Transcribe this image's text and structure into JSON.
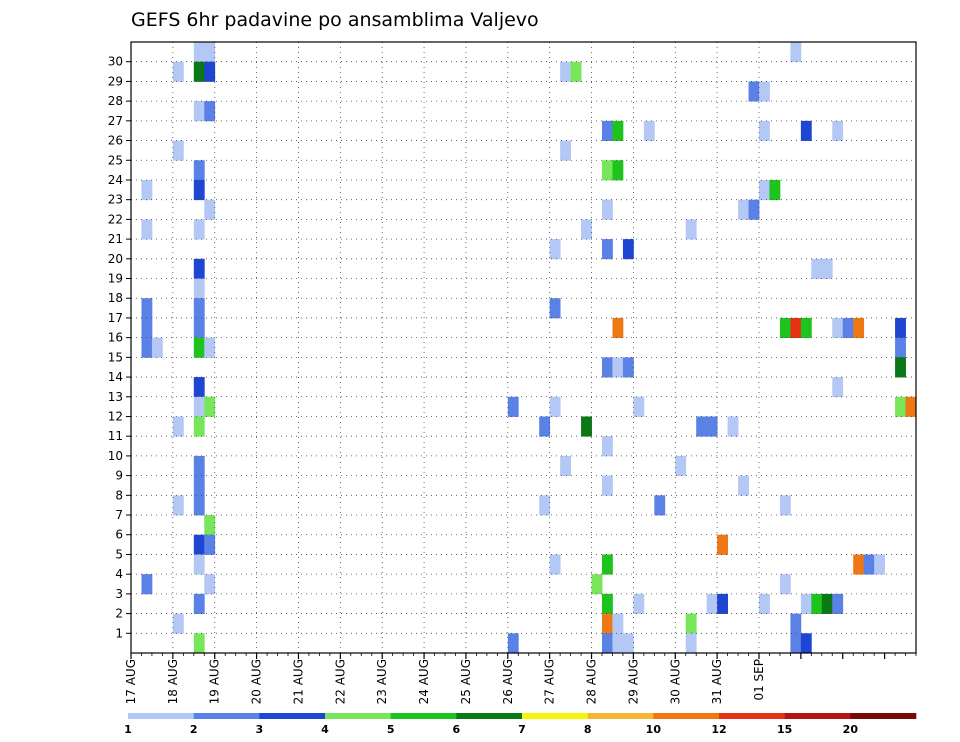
{
  "chart_data": {
    "type": "heatmap",
    "title": "GEFS 6hr padavine po ansamblima Valjevo",
    "xlabel": "",
    "ylabel": "",
    "x_tick_labels": [
      "17 AUG",
      "18 AUG",
      "19 AUG",
      "20 AUG",
      "21 AUG",
      "22 AUG",
      "23 AUG",
      "24 AUG",
      "25 AUG",
      "26 AUG",
      "27 AUG",
      "28 AUG",
      "29 AUG",
      "30 AUG",
      "31 AUG",
      "01 SEP"
    ],
    "y_tick_labels": [
      "1",
      "2",
      "3",
      "4",
      "5",
      "6",
      "7",
      "8",
      "9",
      "10",
      "11",
      "12",
      "13",
      "14",
      "15",
      "16",
      "17",
      "18",
      "19",
      "20",
      "21",
      "22",
      "23",
      "24",
      "25",
      "26",
      "27",
      "28",
      "29",
      "30"
    ],
    "x_step_hours": 6,
    "grid": true,
    "legend_position": "bottom",
    "legend": {
      "levels": [
        "1",
        "2",
        "3",
        "4",
        "5",
        "6",
        "7",
        "8",
        "10",
        "12",
        "15",
        "20"
      ],
      "colors": [
        "#b4c8f5",
        "#5a82e6",
        "#1e46d2",
        "#78e65a",
        "#1ec31e",
        "#0a7814",
        "#f5f50a",
        "#f5b432",
        "#f07814",
        "#e63214",
        "#b41414",
        "#780a0a"
      ]
    },
    "cells": [
      {
        "m": 30,
        "t": 6,
        "v": 1.5
      },
      {
        "m": 30,
        "t": 7,
        "v": 1.5
      },
      {
        "m": 30,
        "t": 63,
        "v": 1.5
      },
      {
        "m": 29,
        "t": 4,
        "v": 1.5
      },
      {
        "m": 29,
        "t": 6,
        "v": 6.5
      },
      {
        "m": 29,
        "t": 7,
        "v": 3.5
      },
      {
        "m": 29,
        "t": 41,
        "v": 1.5
      },
      {
        "m": 29,
        "t": 42,
        "v": 4.5
      },
      {
        "m": 28,
        "t": 59,
        "v": 2.5
      },
      {
        "m": 28,
        "t": 60,
        "v": 1.5
      },
      {
        "m": 27,
        "t": 6,
        "v": 1.5
      },
      {
        "m": 27,
        "t": 7,
        "v": 2.5
      },
      {
        "m": 26,
        "t": 45,
        "v": 2.5
      },
      {
        "m": 26,
        "t": 46,
        "v": 5.5
      },
      {
        "m": 26,
        "t": 49,
        "v": 1.5
      },
      {
        "m": 26,
        "t": 60,
        "v": 1.5
      },
      {
        "m": 26,
        "t": 64,
        "v": 3.5
      },
      {
        "m": 26,
        "t": 67,
        "v": 1.5
      },
      {
        "m": 25,
        "t": 4,
        "v": 1.5
      },
      {
        "m": 25,
        "t": 41,
        "v": 1.5
      },
      {
        "m": 24,
        "t": 6,
        "v": 2.5
      },
      {
        "m": 24,
        "t": 45,
        "v": 4.5
      },
      {
        "m": 24,
        "t": 46,
        "v": 5.5
      },
      {
        "m": 23,
        "t": 1,
        "v": 1.5
      },
      {
        "m": 23,
        "t": 6,
        "v": 3.5
      },
      {
        "m": 23,
        "t": 60,
        "v": 1.5
      },
      {
        "m": 23,
        "t": 61,
        "v": 5.5
      },
      {
        "m": 22,
        "t": 7,
        "v": 1.5
      },
      {
        "m": 22,
        "t": 45,
        "v": 1.5
      },
      {
        "m": 22,
        "t": 58,
        "v": 1.5
      },
      {
        "m": 22,
        "t": 59,
        "v": 2.5
      },
      {
        "m": 21,
        "t": 1,
        "v": 1.5
      },
      {
        "m": 21,
        "t": 6,
        "v": 1.5
      },
      {
        "m": 21,
        "t": 43,
        "v": 1.5
      },
      {
        "m": 21,
        "t": 53,
        "v": 1.5
      },
      {
        "m": 20,
        "t": 40,
        "v": 1.5
      },
      {
        "m": 20,
        "t": 45,
        "v": 2.5
      },
      {
        "m": 20,
        "t": 47,
        "v": 3.5
      },
      {
        "m": 19,
        "t": 6,
        "v": 3.5
      },
      {
        "m": 19,
        "t": 65,
        "v": 1.5
      },
      {
        "m": 19,
        "t": 66,
        "v": 1.5
      },
      {
        "m": 18,
        "t": 6,
        "v": 1.5
      },
      {
        "m": 17,
        "t": 1,
        "v": 2.5
      },
      {
        "m": 17,
        "t": 6,
        "v": 2.5
      },
      {
        "m": 17,
        "t": 40,
        "v": 2.5
      },
      {
        "m": 16,
        "t": 1,
        "v": 2.5
      },
      {
        "m": 16,
        "t": 6,
        "v": 2.5
      },
      {
        "m": 16,
        "t": 46,
        "v": 10.5
      },
      {
        "m": 16,
        "t": 62,
        "v": 5.5
      },
      {
        "m": 16,
        "t": 63,
        "v": 13.5
      },
      {
        "m": 16,
        "t": 64,
        "v": 5.5
      },
      {
        "m": 16,
        "t": 67,
        "v": 1.5
      },
      {
        "m": 16,
        "t": 68,
        "v": 2.5
      },
      {
        "m": 16,
        "t": 69,
        "v": 10.5
      },
      {
        "m": 16,
        "t": 73,
        "v": 3.5
      },
      {
        "m": 15,
        "t": 1,
        "v": 2.5
      },
      {
        "m": 15,
        "t": 2,
        "v": 1.5
      },
      {
        "m": 15,
        "t": 6,
        "v": 5.5
      },
      {
        "m": 15,
        "t": 7,
        "v": 1.5
      },
      {
        "m": 15,
        "t": 73,
        "v": 2.5
      },
      {
        "m": 14,
        "t": 45,
        "v": 2.5
      },
      {
        "m": 14,
        "t": 46,
        "v": 1.5
      },
      {
        "m": 14,
        "t": 47,
        "v": 2.5
      },
      {
        "m": 14,
        "t": 73,
        "v": 6.5
      },
      {
        "m": 13,
        "t": 6,
        "v": 3.5
      },
      {
        "m": 13,
        "t": 67,
        "v": 1.5
      },
      {
        "m": 12,
        "t": 6,
        "v": 1.5
      },
      {
        "m": 12,
        "t": 7,
        "v": 4.5
      },
      {
        "m": 12,
        "t": 36,
        "v": 2.5
      },
      {
        "m": 12,
        "t": 40,
        "v": 1.5
      },
      {
        "m": 12,
        "t": 48,
        "v": 1.5
      },
      {
        "m": 12,
        "t": 73,
        "v": 4.5
      },
      {
        "m": 12,
        "t": 74,
        "v": 11
      },
      {
        "m": 11,
        "t": 4,
        "v": 1.5
      },
      {
        "m": 11,
        "t": 6,
        "v": 4.5
      },
      {
        "m": 11,
        "t": 39,
        "v": 2.5
      },
      {
        "m": 11,
        "t": 43,
        "v": 6.5
      },
      {
        "m": 11,
        "t": 54,
        "v": 2.5
      },
      {
        "m": 11,
        "t": 55,
        "v": 2.5
      },
      {
        "m": 11,
        "t": 57,
        "v": 1.5
      },
      {
        "m": 10,
        "t": 45,
        "v": 1.5
      },
      {
        "m": 9,
        "t": 6,
        "v": 2.5
      },
      {
        "m": 9,
        "t": 41,
        "v": 1.5
      },
      {
        "m": 9,
        "t": 52,
        "v": 1.5
      },
      {
        "m": 8,
        "t": 6,
        "v": 2.5
      },
      {
        "m": 8,
        "t": 45,
        "v": 1.5
      },
      {
        "m": 8,
        "t": 58,
        "v": 1.5
      },
      {
        "m": 7,
        "t": 4,
        "v": 1.5
      },
      {
        "m": 7,
        "t": 6,
        "v": 2.5
      },
      {
        "m": 7,
        "t": 39,
        "v": 1.5
      },
      {
        "m": 7,
        "t": 50,
        "v": 2.5
      },
      {
        "m": 7,
        "t": 62,
        "v": 1.5
      },
      {
        "m": 6,
        "t": 7,
        "v": 4.5
      },
      {
        "m": 5,
        "t": 6,
        "v": 3.5
      },
      {
        "m": 5,
        "t": 7,
        "v": 2.5
      },
      {
        "m": 5,
        "t": 56,
        "v": 10.5
      },
      {
        "m": 4,
        "t": 6,
        "v": 1.5
      },
      {
        "m": 4,
        "t": 40,
        "v": 1.5
      },
      {
        "m": 4,
        "t": 45,
        "v": 5.5
      },
      {
        "m": 4,
        "t": 69,
        "v": 11
      },
      {
        "m": 4,
        "t": 70,
        "v": 2.5
      },
      {
        "m": 4,
        "t": 71,
        "v": 1.5
      },
      {
        "m": 3,
        "t": 1,
        "v": 2.5
      },
      {
        "m": 3,
        "t": 7,
        "v": 1.5
      },
      {
        "m": 3,
        "t": 44,
        "v": 4.5
      },
      {
        "m": 3,
        "t": 62,
        "v": 1.5
      },
      {
        "m": 2,
        "t": 6,
        "v": 2.5
      },
      {
        "m": 2,
        "t": 45,
        "v": 5.5
      },
      {
        "m": 2,
        "t": 48,
        "v": 1.5
      },
      {
        "m": 2,
        "t": 55,
        "v": 1.5
      },
      {
        "m": 2,
        "t": 56,
        "v": 3.5
      },
      {
        "m": 2,
        "t": 60,
        "v": 1.5
      },
      {
        "m": 2,
        "t": 64,
        "v": 1.5
      },
      {
        "m": 2,
        "t": 65,
        "v": 5.5
      },
      {
        "m": 2,
        "t": 66,
        "v": 6.5
      },
      {
        "m": 2,
        "t": 67,
        "v": 2.5
      },
      {
        "m": 1,
        "t": 4,
        "v": 1.5
      },
      {
        "m": 1,
        "t": 45,
        "v": 10.5
      },
      {
        "m": 1,
        "t": 46,
        "v": 1.5
      },
      {
        "m": 1,
        "t": 53,
        "v": 4.5
      },
      {
        "m": 1,
        "t": 63,
        "v": 2.5
      },
      {
        "m": 0,
        "t": 6,
        "v": 4.5
      },
      {
        "m": 0,
        "t": 36,
        "v": 2.5
      },
      {
        "m": 0,
        "t": 45,
        "v": 2.5
      },
      {
        "m": 0,
        "t": 46,
        "v": 1.5
      },
      {
        "m": 0,
        "t": 47,
        "v": 1.5
      },
      {
        "m": 0,
        "t": 53,
        "v": 1.5
      },
      {
        "m": 0,
        "t": 63,
        "v": 2.5
      },
      {
        "m": 0,
        "t": 64,
        "v": 3.5
      }
    ]
  }
}
